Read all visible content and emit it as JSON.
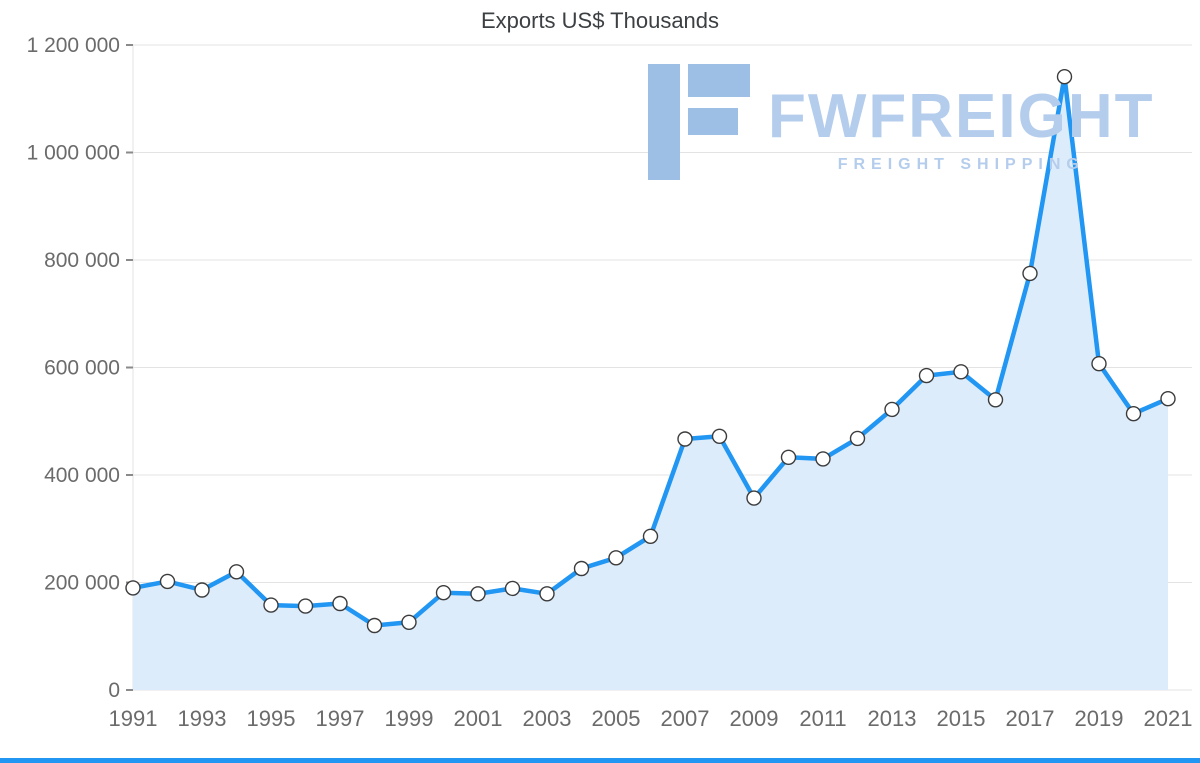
{
  "title": "Exports US$ Thousands",
  "watermark": {
    "brand": "FWFREIGHT",
    "tagline": "FREIGHT SHIPPING"
  },
  "chart_data": {
    "type": "area",
    "title": "Exports US$ Thousands",
    "x": [
      1991,
      1992,
      1993,
      1994,
      1995,
      1996,
      1997,
      1998,
      1999,
      2000,
      2001,
      2002,
      2003,
      2004,
      2005,
      2006,
      2007,
      2008,
      2009,
      2010,
      2011,
      2012,
      2013,
      2014,
      2015,
      2016,
      2017,
      2018,
      2019,
      2020,
      2021
    ],
    "values": [
      190000,
      202000,
      186000,
      220000,
      158000,
      156000,
      161000,
      120000,
      126000,
      181000,
      179000,
      189000,
      179000,
      226000,
      246000,
      286000,
      467000,
      472000,
      357000,
      433000,
      430000,
      468000,
      522000,
      585000,
      592000,
      540000,
      775000,
      1141000,
      607000,
      514000,
      542000
    ],
    "x_tick_labels": [
      "1991",
      "1993",
      "1995",
      "1997",
      "1999",
      "2001",
      "2003",
      "2005",
      "2007",
      "2009",
      "2011",
      "2013",
      "2015",
      "2017",
      "2019",
      "2021"
    ],
    "y_ticks": [
      0,
      200000,
      400000,
      600000,
      800000,
      1000000,
      1200000
    ],
    "y_tick_labels": [
      "0",
      "200 000",
      "400 000",
      "600 000",
      "800 000",
      "1 000 000",
      "1 200 000"
    ],
    "ylim": [
      0,
      1200000
    ],
    "xlabel": "",
    "ylabel": "",
    "grid": "horizontal",
    "legend": "none",
    "colors": {
      "line": "#2196f3",
      "area": "#ddecfb",
      "marker_fill": "#ffffff",
      "marker_stroke": "#3c3c3c",
      "grid": "#e3e3e3",
      "tick_mark": "#8a8a8a",
      "tick_text": "#6b6b6b",
      "title_text": "#3c4043",
      "watermark": "#b4cdec",
      "bottom_bar": "#2196f3"
    }
  }
}
